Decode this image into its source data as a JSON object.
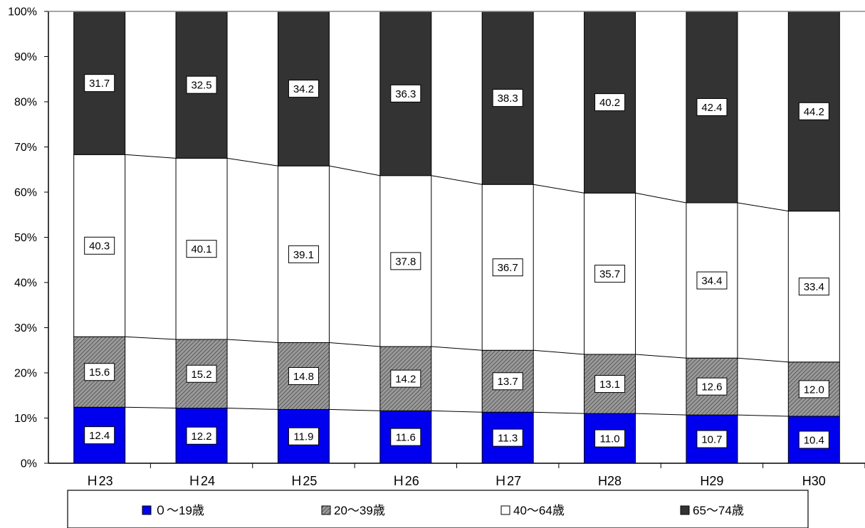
{
  "chart_data": {
    "type": "bar",
    "stacked": true,
    "percent": true,
    "categories": [
      "H23",
      "H24",
      "H25",
      "H26",
      "H27",
      "H28",
      "H29",
      "H30"
    ],
    "category_labels": [
      "Ｈ23",
      "Ｈ24",
      "Ｈ25",
      "Ｈ26",
      "Ｈ27",
      "H28",
      "H29",
      "H30"
    ],
    "series": [
      {
        "name": "０～19歳",
        "legend_label": "０～19歳",
        "color": "#0000ee",
        "pattern": "solid",
        "values": [
          12.4,
          12.2,
          11.9,
          11.6,
          11.3,
          11.0,
          10.7,
          10.4
        ]
      },
      {
        "name": "20～39歳",
        "legend_label": "20～39歳",
        "color": "#888888",
        "pattern": "hatch",
        "values": [
          15.6,
          15.2,
          14.8,
          14.2,
          13.7,
          13.1,
          12.6,
          12.0
        ]
      },
      {
        "name": "40～64歳",
        "legend_label": "40～64歳",
        "color": "#ffffff",
        "pattern": "solid",
        "values": [
          40.3,
          40.1,
          39.1,
          37.8,
          36.7,
          35.7,
          34.4,
          33.4
        ]
      },
      {
        "name": "65～74歳",
        "legend_label": "65～74歳",
        "color": "#333333",
        "pattern": "solid",
        "values": [
          31.7,
          32.5,
          34.2,
          36.3,
          38.3,
          40.2,
          42.4,
          44.2
        ]
      }
    ],
    "value_labels": {
      "０～19歳": [
        "12.4",
        "12.2",
        "11.9",
        "11.6",
        "11.3",
        "11.0",
        "10.7",
        "10.4"
      ],
      "20～39歳": [
        "15.6",
        "15.2",
        "14.8",
        "14.2",
        "13.7",
        "13.1",
        "12.6",
        "12.0"
      ],
      "40～64歳": [
        "40.3",
        "40.1",
        "39.1",
        "37.8",
        "36.7",
        "35.7",
        "34.4",
        "33.4"
      ],
      "65～74歳": [
        "31.7",
        "32.5",
        "34.2",
        "36.3",
        "38.3",
        "40.2",
        "42.4",
        "44.2"
      ]
    },
    "ylim": [
      0,
      100
    ],
    "yticks": [
      "0%",
      "10%",
      "20%",
      "30%",
      "40%",
      "50%",
      "60%",
      "70%",
      "80%",
      "90%",
      "100%"
    ],
    "series_lines": true,
    "grid": false,
    "legend_position": "bottom",
    "title": "",
    "xlabel": "",
    "ylabel": ""
  }
}
